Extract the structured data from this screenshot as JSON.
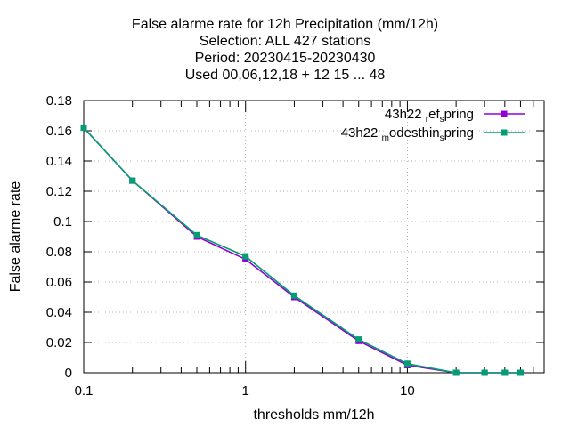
{
  "chart_data": {
    "type": "line",
    "title_lines": [
      "False alarme rate  for 12h Precipitation (mm/12h)",
      "Selection: ALL     427 stations",
      "Period: 20230415-20230430",
      "Used  00,06,12,18  + 12 15 ... 48"
    ],
    "xlabel": "thresholds mm/12h",
    "ylabel": "False alarme rate",
    "x_scale": "log",
    "xlim": [
      0.1,
      70
    ],
    "ylim": [
      0,
      0.18
    ],
    "x_ticks": [
      "0.1",
      "1",
      "10"
    ],
    "y_ticks": [
      "0",
      "0.02",
      "0.04",
      "0.06",
      "0.08",
      "0.1",
      "0.12",
      "0.14",
      "0.16",
      "0.18"
    ],
    "grid": true,
    "legend_position": "top-right",
    "series": [
      {
        "name": "43h22_ref_spring",
        "color": "#9400d3",
        "x": [
          0.1,
          0.2,
          0.5,
          1,
          2,
          5,
          10,
          20,
          30,
          40,
          50
        ],
        "y": [
          0.162,
          0.127,
          0.09,
          0.075,
          0.05,
          0.021,
          0.005,
          0.0,
          0.0,
          0.0,
          0.0
        ]
      },
      {
        "name": "43h22_modesthin_spring",
        "color": "#009e73",
        "x": [
          0.1,
          0.2,
          0.5,
          1,
          2,
          5,
          10,
          20,
          30,
          40,
          50
        ],
        "y": [
          0.162,
          0.127,
          0.091,
          0.077,
          0.051,
          0.022,
          0.006,
          0.0,
          0.0,
          0.0,
          0.0
        ]
      }
    ],
    "legend": [
      {
        "prefix": "43h22",
        "parts": [
          [
            "sub",
            "r"
          ],
          [
            "txt",
            "ef"
          ],
          [
            "sub",
            "s"
          ],
          [
            "txt",
            "pring"
          ]
        ]
      },
      {
        "prefix": "43h22",
        "parts": [
          [
            "sub",
            "m"
          ],
          [
            "txt",
            "odesthin"
          ],
          [
            "sub",
            "s"
          ],
          [
            "txt",
            "pring"
          ]
        ]
      }
    ]
  }
}
